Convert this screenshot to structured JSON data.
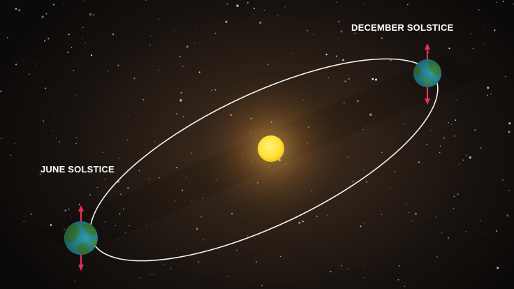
{
  "labels": {
    "december": "DECEMBER SOLSTICE",
    "june": "JUNE SOLSTICE"
  },
  "colors": {
    "orbit": "#ffffff",
    "sun": "#ffe14a",
    "ocean": "#2f9aa8",
    "land": "#3e8f4a",
    "axis": "#e8305c"
  },
  "icons": {
    "sun": "sun-icon",
    "earth": "earth-icon",
    "axis": "axis-arrow-icon"
  }
}
